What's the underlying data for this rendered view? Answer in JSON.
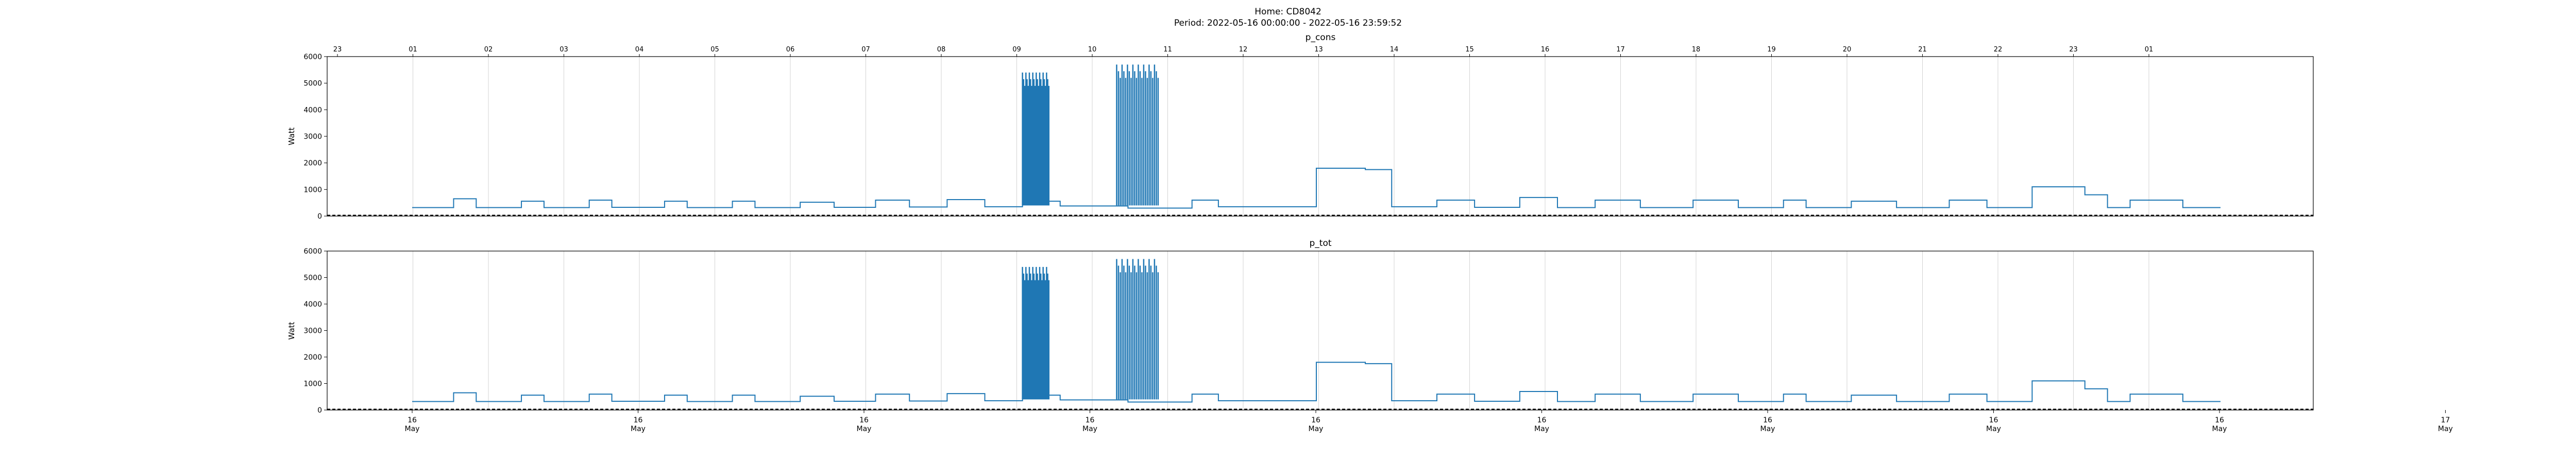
{
  "figure": {
    "title_line1": "Home: CD8042",
    "title_line2": "Period: 2022-05-16 00:00:00 - 2022-05-16 23:59:52"
  },
  "colors": {
    "series": "#1f77b4",
    "grid": "#d3d3d3",
    "baseline": "#000000"
  },
  "chart_data": [
    {
      "type": "line",
      "title": "p_cons",
      "ylabel": "Watt",
      "ylim": [
        0,
        6000
      ],
      "yticks": [
        0,
        1000,
        2000,
        3000,
        4000,
        5000,
        6000
      ],
      "grid": "vertical",
      "top_ticklabels": [
        "23",
        "01",
        "02",
        "03",
        "04",
        "05",
        "06",
        "07",
        "08",
        "09",
        "10",
        "11",
        "12",
        "13",
        "14",
        "15",
        "16",
        "17",
        "18",
        "19",
        "20",
        "21",
        "22",
        "23",
        "01"
      ],
      "bottom_ticklabels": [],
      "series": [
        {
          "x_hours": [
            0,
            0.5,
            0.55,
            0.8,
            0.85,
            1.4,
            1.45,
            1.7,
            1.75,
            2.3,
            2.35,
            2.6,
            2.65,
            3.3,
            3.35,
            3.6,
            3.65,
            4.2,
            4.25,
            4.5,
            4.55,
            5.1,
            5.15,
            5.5,
            5.6,
            6.1,
            6.15,
            6.5,
            6.6,
            7.0,
            7.1,
            7.5,
            7.6,
            8.0,
            8.1,
            8.5,
            8.6,
            9.0,
            9.5,
            10.3,
            10.35,
            10.6,
            10.7,
            11.2,
            11.3,
            11.9,
            12.0,
            12.6,
            12.65,
            12.9,
            13.0,
            13.5,
            13.6,
            14.0,
            14.1,
            14.6,
            14.7,
            15.1,
            15.2,
            15.6,
            15.7,
            16.2,
            16.3,
            16.9,
            17.0,
            17.5,
            17.6,
            18.0,
            18.2,
            18.4,
            18.5,
            19.0,
            19.1,
            19.6,
            19.7,
            20.3,
            20.4,
            20.8,
            20.9,
            21.4,
            21.5,
            22.1,
            22.2,
            22.4,
            22.5,
            22.7,
            22.8,
            23.0,
            23.5,
            24.0
          ],
          "values": [
            320,
            320,
            650,
            650,
            320,
            320,
            560,
            560,
            320,
            320,
            600,
            600,
            330,
            330,
            560,
            560,
            320,
            320,
            560,
            560,
            320,
            320,
            520,
            520,
            330,
            330,
            600,
            600,
            340,
            340,
            620,
            620,
            350,
            350,
            560,
            560,
            380,
            380,
            300,
            300,
            600,
            600,
            350,
            350,
            350,
            350,
            1800,
            1800,
            1750,
            1750,
            350,
            350,
            600,
            600,
            330,
            330,
            700,
            700,
            320,
            320,
            600,
            600,
            320,
            320,
            600,
            600,
            320,
            320,
            600,
            600,
            320,
            320,
            560,
            560,
            320,
            320,
            600,
            600,
            320,
            320,
            1100,
            1100,
            800,
            800,
            320,
            320,
            600,
            600,
            320,
            320
          ]
        }
      ]
    },
    {
      "type": "line",
      "title": "p_tot",
      "ylabel": "Watt",
      "ylim": [
        0,
        6000
      ],
      "yticks": [
        0,
        1000,
        2000,
        3000,
        4000,
        5000,
        6000
      ],
      "grid": "vertical",
      "top_ticklabels": [],
      "bottom_ticklabels": [
        "16\nMay",
        "16\nMay",
        "16\nMay",
        "16\nMay",
        "16\nMay",
        "16\nMay",
        "16\nMay",
        "16\nMay",
        "16\nMay",
        "17\nMay"
      ],
      "series": [
        {
          "x_hours": [
            0,
            0.5,
            0.55,
            0.8,
            0.85,
            1.4,
            1.45,
            1.7,
            1.75,
            2.3,
            2.35,
            2.6,
            2.65,
            3.3,
            3.35,
            3.6,
            3.65,
            4.2,
            4.25,
            4.5,
            4.55,
            5.1,
            5.15,
            5.5,
            5.6,
            6.1,
            6.15,
            6.5,
            6.6,
            7.0,
            7.1,
            7.5,
            7.6,
            8.0,
            8.1,
            8.5,
            8.6,
            9.0,
            9.5,
            10.3,
            10.35,
            10.6,
            10.7,
            11.2,
            11.3,
            11.9,
            12.0,
            12.6,
            12.65,
            12.9,
            13.0,
            13.5,
            13.6,
            14.0,
            14.1,
            14.6,
            14.7,
            15.1,
            15.2,
            15.6,
            15.7,
            16.2,
            16.3,
            16.9,
            17.0,
            17.5,
            17.6,
            18.0,
            18.2,
            18.4,
            18.5,
            19.0,
            19.1,
            19.6,
            19.7,
            20.3,
            20.4,
            20.8,
            20.9,
            21.4,
            21.5,
            22.1,
            22.2,
            22.4,
            22.5,
            22.7,
            22.8,
            23.0,
            23.5,
            24.0
          ],
          "values": [
            320,
            320,
            650,
            650,
            320,
            320,
            560,
            560,
            320,
            320,
            600,
            600,
            330,
            330,
            560,
            560,
            320,
            320,
            560,
            560,
            320,
            320,
            520,
            520,
            330,
            330,
            600,
            600,
            340,
            340,
            620,
            620,
            350,
            350,
            560,
            560,
            380,
            380,
            300,
            300,
            600,
            600,
            350,
            350,
            350,
            350,
            1800,
            1800,
            1750,
            1750,
            350,
            350,
            600,
            600,
            330,
            330,
            700,
            700,
            320,
            320,
            600,
            600,
            320,
            320,
            600,
            600,
            320,
            320,
            600,
            600,
            320,
            320,
            560,
            560,
            320,
            320,
            600,
            600,
            320,
            320,
            1100,
            1100,
            800,
            800,
            320,
            320,
            600,
            600,
            320,
            320
          ]
        }
      ]
    }
  ],
  "spikes": [
    {
      "start_hour": 8.1,
      "end_hour": 8.45,
      "low": 400,
      "high": 5400
    },
    {
      "start_hour": 9.35,
      "end_hour": 9.9,
      "low": 400,
      "high": 5700
    }
  ]
}
